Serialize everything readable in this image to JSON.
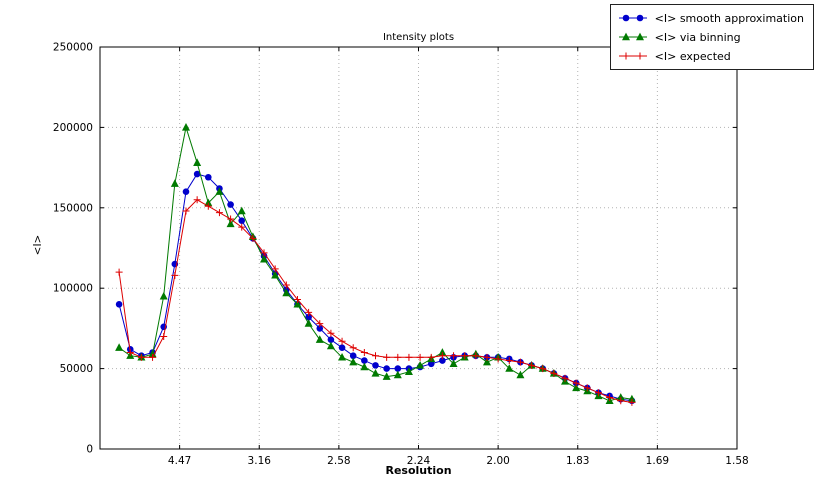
{
  "window": {
    "background": "#ffffff"
  },
  "chart_data": {
    "type": "line",
    "title": "Intensity plots",
    "xlabel": "Resolution",
    "ylabel": "<I>",
    "grid": true,
    "legend_position": "upper right, outside plot top-right corner",
    "x_units": "1/d^2; tick labels show resolution d in Angstrom",
    "x_range": [
      0.0,
      0.4
    ],
    "ylim": [
      0,
      250000
    ],
    "x_ticks": [
      {
        "pos": 0.05,
        "label": "4.47"
      },
      {
        "pos": 0.1,
        "label": "3.16"
      },
      {
        "pos": 0.15,
        "label": "2.58"
      },
      {
        "pos": 0.2,
        "label": "2.24"
      },
      {
        "pos": 0.25,
        "label": "2.00"
      },
      {
        "pos": 0.3,
        "label": "1.83"
      },
      {
        "pos": 0.35,
        "label": "1.69"
      },
      {
        "pos": 0.4,
        "label": "1.58"
      }
    ],
    "y_ticks": [
      0,
      50000,
      100000,
      150000,
      200000,
      250000
    ],
    "x": [
      0.012,
      0.019,
      0.026,
      0.033,
      0.04,
      0.047,
      0.054,
      0.061,
      0.068,
      0.075,
      0.082,
      0.089,
      0.096,
      0.103,
      0.11,
      0.117,
      0.124,
      0.131,
      0.138,
      0.145,
      0.152,
      0.159,
      0.166,
      0.173,
      0.18,
      0.187,
      0.194,
      0.201,
      0.208,
      0.215,
      0.222,
      0.229,
      0.236,
      0.243,
      0.25,
      0.257,
      0.264,
      0.271,
      0.278,
      0.285,
      0.292,
      0.299,
      0.306,
      0.313,
      0.32,
      0.327,
      0.334
    ],
    "series": [
      {
        "name": "<I> smooth approximation",
        "color": "#0000cc",
        "marker": "circle",
        "values": [
          90000,
          62000,
          58000,
          60000,
          76000,
          115000,
          160000,
          171000,
          169000,
          162000,
          152000,
          142000,
          131000,
          120000,
          109000,
          99000,
          90000,
          82000,
          75000,
          68000,
          63000,
          58000,
          55000,
          52000,
          50000,
          50000,
          50000,
          51000,
          53000,
          55000,
          57000,
          58000,
          58000,
          57000,
          57000,
          56000,
          54000,
          52000,
          50000,
          47000,
          44000,
          41000,
          38000,
          35000,
          33000,
          31000,
          30000
        ]
      },
      {
        "name": "<I> via binning",
        "color": "#007a00",
        "marker": "triangle",
        "values": [
          63000,
          58000,
          57000,
          59000,
          95000,
          165000,
          200000,
          178000,
          153000,
          160000,
          140000,
          148000,
          132000,
          118000,
          108000,
          97000,
          90000,
          78000,
          68000,
          64000,
          57000,
          54000,
          51000,
          47000,
          45000,
          46000,
          48000,
          52000,
          56000,
          60000,
          53000,
          57000,
          59000,
          54000,
          57000,
          50000,
          46000,
          52000,
          50000,
          47000,
          42000,
          38000,
          36000,
          33000,
          30000,
          32000,
          31000
        ]
      },
      {
        "name": "<I> expected",
        "color": "#dd0000",
        "marker": "plus",
        "values": [
          110000,
          60000,
          57000,
          57000,
          70000,
          108000,
          148000,
          155000,
          151000,
          147000,
          143000,
          138000,
          131000,
          122000,
          112000,
          102000,
          93000,
          85000,
          78000,
          72000,
          67000,
          63000,
          60000,
          58000,
          57000,
          57000,
          57000,
          57000,
          57000,
          58000,
          58000,
          58000,
          58000,
          57000,
          56000,
          55000,
          54000,
          52000,
          50000,
          47000,
          44000,
          41000,
          38000,
          35000,
          32000,
          30000,
          29000
        ]
      }
    ]
  }
}
